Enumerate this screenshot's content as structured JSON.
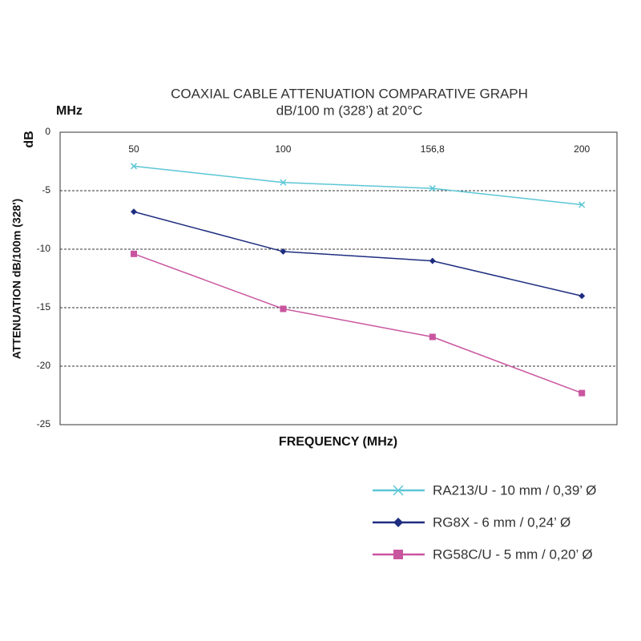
{
  "chart_data": {
    "type": "line",
    "title": "COAXIAL CABLE ATTENUATION COMPARATIVE GRAPH",
    "subtitle": "dB/100 m (328’) at 20°C",
    "x_unit_label": "MHz",
    "y_unit_label": "dB",
    "y_label": "ATTENUATION dB/100m (328')",
    "x_label": "FREQUENCY (MHz)",
    "categories": [
      "50",
      "100",
      "156,8",
      "200"
    ],
    "series": [
      {
        "name": "RA213/U - 10 mm / 0,39’ Ø",
        "color": "#5cc6d6",
        "marker": "x",
        "values": [
          -2.9,
          -4.3,
          -4.8,
          -6.2
        ]
      },
      {
        "name": "RG8X - 6 mm / 0,24’ Ø",
        "color": "#1e2d80",
        "marker": "diamond",
        "values": [
          -6.8,
          -10.2,
          -11.0,
          -14.0
        ]
      },
      {
        "name": "RG58C/U - 5 mm / 0,20’ Ø",
        "color": "#c9559f",
        "marker": "square",
        "values": [
          -10.4,
          -15.1,
          -17.5,
          -22.3
        ]
      }
    ],
    "ylim": [
      -25,
      0
    ],
    "yticks": [
      0,
      -5,
      -10,
      -15,
      -20,
      -25
    ],
    "grid": true,
    "legend": "bottom-right"
  }
}
